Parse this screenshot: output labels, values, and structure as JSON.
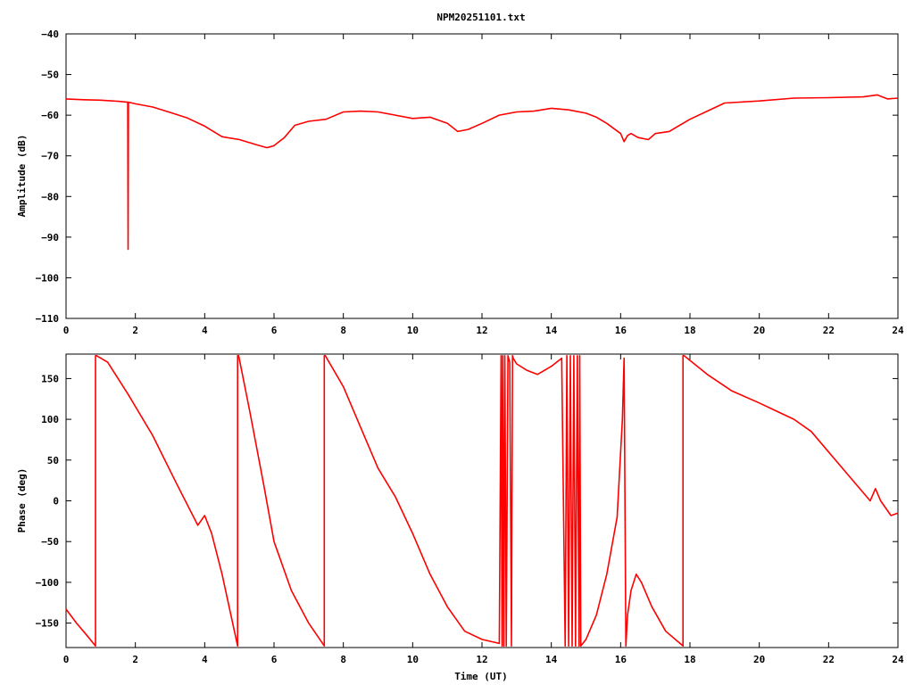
{
  "colors": {
    "series": "#ff0000",
    "axis": "#000000",
    "background": "#ffffff"
  },
  "chart_data": [
    {
      "type": "line",
      "title": "NPM20251101.txt",
      "xlabel": "",
      "ylabel": "Amplitude (dB)",
      "xlim": [
        0,
        24
      ],
      "ylim": [
        -110,
        -40
      ],
      "xticks": [
        0,
        2,
        4,
        6,
        8,
        10,
        12,
        14,
        16,
        18,
        20,
        22,
        24
      ],
      "yticks": [
        -110,
        -100,
        -90,
        -80,
        -70,
        -60,
        -50,
        -40
      ],
      "grid": false,
      "series": [
        {
          "x": [
            0,
            0.5,
            1.0,
            1.5,
            1.78,
            1.79,
            1.8,
            1.81,
            2.0,
            2.5,
            3.0,
            3.5,
            4.0,
            4.5,
            5.0,
            5.5,
            5.8,
            6.0,
            6.3,
            6.6,
            7.0,
            7.5,
            8.0,
            8.5,
            9.0,
            9.5,
            10.0,
            10.5,
            11.0,
            11.3,
            11.6,
            12.0,
            12.5,
            13.0,
            13.5,
            14.0,
            14.5,
            15.0,
            15.3,
            15.6,
            16.0,
            16.1,
            16.2,
            16.3,
            16.5,
            16.8,
            17.0,
            17.4,
            18.0,
            18.5,
            19.0,
            20.0,
            21.0,
            22.0,
            23.0,
            23.4,
            23.7,
            24.0
          ],
          "y": [
            -56.0,
            -56.2,
            -56.3,
            -56.6,
            -56.8,
            -93.0,
            -56.8,
            -56.8,
            -57.2,
            -58.0,
            -59.3,
            -60.7,
            -62.7,
            -65.3,
            -66.0,
            -67.3,
            -68.0,
            -67.5,
            -65.5,
            -62.5,
            -61.5,
            -61.0,
            -59.2,
            -59.0,
            -59.2,
            -60.0,
            -60.8,
            -60.5,
            -62.0,
            -64.0,
            -63.5,
            -62.0,
            -60.0,
            -59.2,
            -59.0,
            -58.3,
            -58.7,
            -59.5,
            -60.5,
            -62.0,
            -64.5,
            -66.5,
            -65.0,
            -64.5,
            -65.5,
            -66.0,
            -64.5,
            -64.0,
            -61.0,
            -59.0,
            -57.0,
            -56.5,
            -55.8,
            -55.7,
            -55.5,
            -55.0,
            -56.0,
            -55.8
          ]
        }
      ]
    },
    {
      "type": "line",
      "title": "",
      "xlabel": "Time (UT)",
      "ylabel": "Phase (deg)",
      "xlim": [
        0,
        24
      ],
      "ylim": [
        -180,
        180
      ],
      "xticks": [
        0,
        2,
        4,
        6,
        8,
        10,
        12,
        14,
        16,
        18,
        20,
        22,
        24
      ],
      "yticks": [
        -150,
        -100,
        -50,
        0,
        50,
        100,
        150
      ],
      "grid": false,
      "series": [
        {
          "x": [
            0,
            0.3,
            0.6,
            0.85,
            0.85,
            0.88,
            0.88,
            1.2,
            1.8,
            2.5,
            3.2,
            3.8,
            4.0,
            4.2,
            4.5,
            4.95,
            4.95,
            4.98,
            4.98,
            5.3,
            5.7,
            6.0,
            6.5,
            7.0,
            7.45,
            7.45,
            7.48,
            7.48,
            8.0,
            8.5,
            9.0,
            9.5,
            10.0,
            10.5,
            11.0,
            11.5,
            12.0,
            12.5,
            12.55,
            12.58,
            12.6,
            12.63,
            12.66,
            12.7,
            12.75,
            12.8,
            12.85,
            12.88,
            12.9,
            13.0,
            13.3,
            13.6,
            14.0,
            14.3,
            14.4,
            14.45,
            14.5,
            14.55,
            14.6,
            14.65,
            14.7,
            14.75,
            14.8,
            14.82,
            14.85,
            15.0,
            15.3,
            15.6,
            15.9,
            16.05,
            16.1,
            16.15,
            16.2,
            16.3,
            16.45,
            16.6,
            16.9,
            17.3,
            17.8,
            17.8,
            17.83,
            17.83,
            18.5,
            19.2,
            20.0,
            20.5,
            21.0,
            21.5,
            22.0,
            22.6,
            23.2,
            23.35,
            23.5,
            23.8,
            24.0
          ],
          "y": [
            -133,
            -150,
            -165,
            -178,
            178,
            178,
            178,
            170,
            130,
            80,
            20,
            -30,
            -18,
            -40,
            -90,
            -178,
            178,
            178,
            178,
            110,
            20,
            -50,
            -110,
            -150,
            -178,
            178,
            178,
            178,
            140,
            90,
            40,
            5,
            -40,
            -90,
            -130,
            -160,
            -170,
            -175,
            178,
            -178,
            178,
            -178,
            178,
            -178,
            178,
            170,
            -178,
            178,
            175,
            168,
            160,
            155,
            165,
            175,
            -178,
            178,
            -178,
            178,
            -178,
            178,
            -178,
            178,
            -178,
            178,
            -178,
            -170,
            -140,
            -90,
            -20,
            100,
            175,
            -178,
            -140,
            -110,
            -90,
            -100,
            -130,
            -160,
            -178,
            178,
            178,
            178,
            155,
            135,
            120,
            110,
            100,
            85,
            60,
            30,
            0,
            15,
            0,
            -18,
            -15
          ]
        }
      ]
    }
  ]
}
